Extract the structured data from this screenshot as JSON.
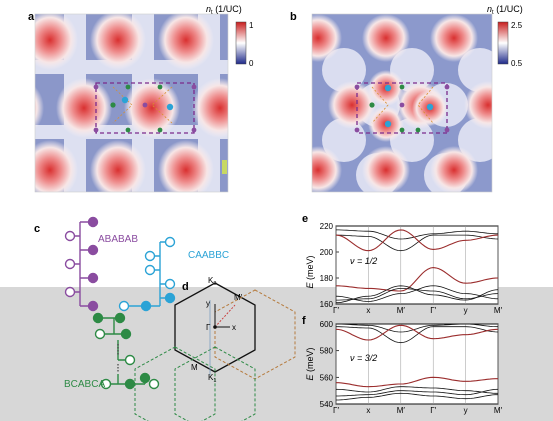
{
  "panels": {
    "a": {
      "letter": "a",
      "colorbar": {
        "label_symbol": "n",
        "label_sub": "t",
        "label_unit": " (1/UC)",
        "max": "1",
        "min": "0"
      }
    },
    "b": {
      "letter": "b",
      "colorbar": {
        "label_symbol": "n",
        "label_sub": "t",
        "label_unit": " (1/UC)",
        "max": "2.5",
        "min": "0.5"
      }
    },
    "c": {
      "letter": "c",
      "labels": {
        "ababab": "ABABAB",
        "caabbc": "CAABBC",
        "bcabca": "BCABCA"
      }
    },
    "d": {
      "letter": "d",
      "labels": {
        "k0": "K",
        "k0_sub": "0",
        "k1": "K",
        "k1_sub": "1",
        "mprime": "M′",
        "m": "M",
        "gamma": "Γ",
        "x": "x",
        "y": "y"
      }
    },
    "e": {
      "letter": "e",
      "ylabel_symbol": "E",
      "ylabel_unit": " (meV)",
      "filling": "ν = 1/2"
    },
    "f": {
      "letter": "f",
      "ylabel_symbol": "E",
      "ylabel_unit": " (meV)",
      "filling": "ν = 3/2"
    }
  },
  "colors": {
    "accent_red": "#c83434",
    "purple": "#8a4ca0",
    "cyan": "#2ba3d6",
    "green": "#2d8a45",
    "band_red": "#9b2d2d",
    "gray_band": "#d7d7d7"
  },
  "chart_data": [
    {
      "type": "line",
      "panel": "e",
      "xlabel": "",
      "ylabel": "E (meV)",
      "ylim": [
        160,
        220
      ],
      "yticks": [
        160,
        180,
        200,
        220
      ],
      "xticks": [
        "Γ′",
        "x",
        "M′",
        "Γ′",
        "y",
        "M′"
      ],
      "x": [
        0,
        1,
        2,
        3,
        4,
        5
      ],
      "series": [
        {
          "values": [
            213,
            212,
            201,
            213,
            213,
            210
          ]
        },
        {
          "values": [
            217,
            216,
            210,
            214,
            216,
            214
          ]
        },
        {
          "values": [
            213,
            201,
            217,
            202,
            209,
            213
          ]
        },
        {
          "values": [
            174,
            172,
            170,
            188,
            176,
            180
          ]
        },
        {
          "values": [
            166,
            162,
            168,
            174,
            168,
            164
          ]
        },
        {
          "values": [
            163,
            164,
            172,
            170,
            164,
            168
          ]
        },
        {
          "values": [
            161,
            166,
            174,
            167,
            163,
            171
          ]
        }
      ]
    },
    {
      "type": "line",
      "panel": "f",
      "xlabel": "",
      "ylabel": "E (meV)",
      "ylim": [
        540,
        600
      ],
      "yticks": [
        540,
        560,
        580,
        600
      ],
      "xticks": [
        "Γ′",
        "x",
        "M′",
        "Γ′",
        "y",
        "M′"
      ],
      "x": [
        0,
        1,
        2,
        3,
        4,
        5
      ],
      "series": [
        {
          "values": [
            598,
            597,
            586,
            598,
            598,
            594
          ]
        },
        {
          "values": [
            600,
            599,
            594,
            599,
            600,
            598
          ]
        },
        {
          "values": [
            596,
            588,
            599,
            589,
            592,
            596
          ]
        },
        {
          "values": [
            556,
            553,
            555,
            560,
            557,
            559
          ]
        },
        {
          "values": [
            551,
            549,
            553,
            552,
            550,
            548
          ]
        },
        {
          "values": [
            546,
            547,
            550,
            549,
            547,
            551
          ]
        },
        {
          "values": [
            543,
            545,
            548,
            546,
            544,
            547
          ]
        }
      ]
    }
  ]
}
